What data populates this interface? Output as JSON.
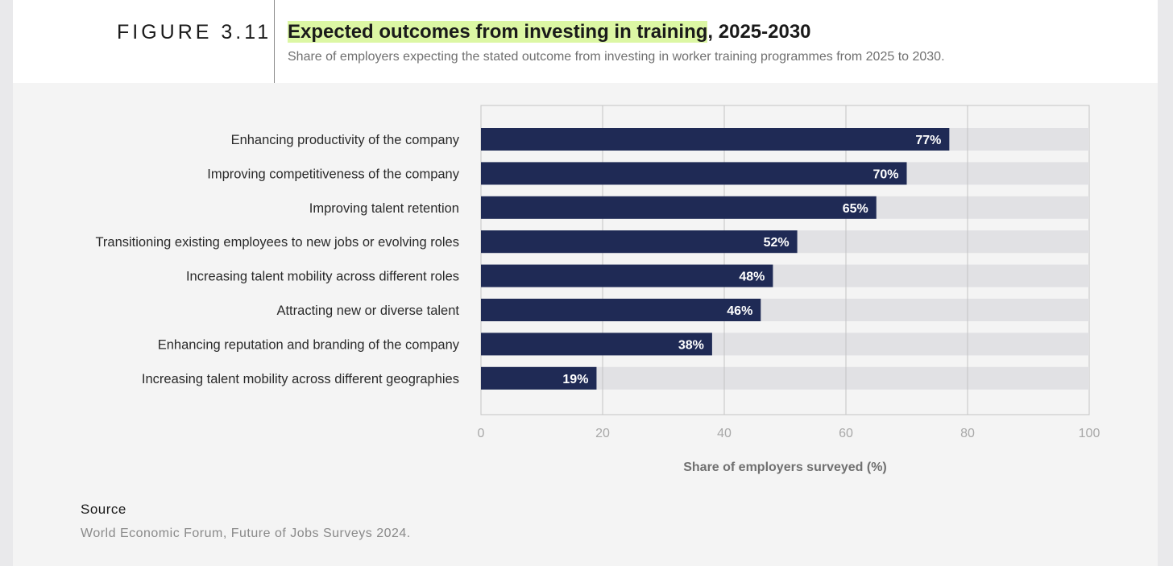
{
  "figure_label": "FIGURE 3.11",
  "title_highlight": "Expected outcomes from investing in training",
  "title_rest": ", 2025-2030",
  "subtitle": "Share of employers expecting the stated outcome from investing in worker training programmes from 2025 to 2030.",
  "source": {
    "heading": "Source",
    "text": "World Economic Forum, Future of Jobs Surveys 2024."
  },
  "colors": {
    "bar": "#1f2a55",
    "track": "#e1e1e4",
    "highlight": "#dcf7a4"
  },
  "chart_data": {
    "type": "bar",
    "orientation": "horizontal",
    "categories": [
      "Enhancing productivity of the company",
      "Improving competitiveness of the company",
      "Improving talent retention",
      "Transitioning existing employees to new jobs or evolving roles",
      "Increasing talent mobility across different roles",
      "Attracting new or diverse talent",
      "Enhancing reputation and branding of the company",
      "Increasing talent mobility across different geographies"
    ],
    "values": [
      77,
      70,
      65,
      52,
      48,
      46,
      38,
      19
    ],
    "value_labels": [
      "77%",
      "70%",
      "65%",
      "52%",
      "48%",
      "46%",
      "38%",
      "19%"
    ],
    "xlabel": "Share of employers surveyed (%)",
    "xlim": [
      0,
      100
    ],
    "xticks": [
      "0",
      "20",
      "40",
      "60",
      "80",
      "100"
    ],
    "grid": true
  }
}
